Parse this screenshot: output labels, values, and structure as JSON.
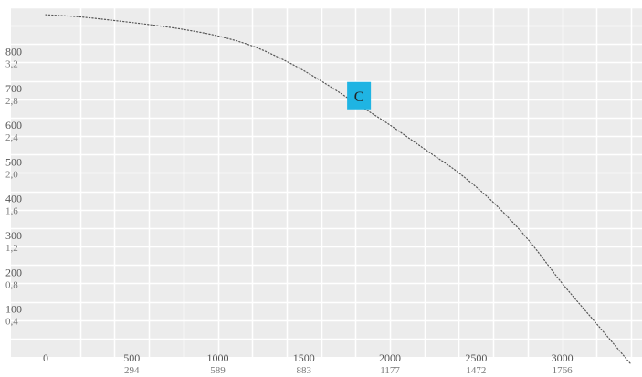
{
  "chart_data": {
    "type": "line",
    "title": "",
    "xlabel": "",
    "ylabel": "",
    "xlim": [
      0,
      3400
    ],
    "ylim": [
      0,
      950
    ],
    "grid": true,
    "x_ticks": [
      {
        "value": 0,
        "label": "0",
        "sub": ""
      },
      {
        "value": 500,
        "label": "500",
        "sub": "294"
      },
      {
        "value": 1000,
        "label": "1000",
        "sub": "589"
      },
      {
        "value": 1500,
        "label": "1500",
        "sub": "883"
      },
      {
        "value": 2000,
        "label": "2000",
        "sub": "1177"
      },
      {
        "value": 2500,
        "label": "2500",
        "sub": "1472"
      },
      {
        "value": 3000,
        "label": "3000",
        "sub": "1766"
      }
    ],
    "y_ticks": [
      {
        "value": 100,
        "label": "100",
        "sub": "0,4"
      },
      {
        "value": 200,
        "label": "200",
        "sub": "0,8"
      },
      {
        "value": 300,
        "label": "300",
        "sub": "1,2"
      },
      {
        "value": 400,
        "label": "400",
        "sub": "1,6"
      },
      {
        "value": 500,
        "label": "500",
        "sub": "2,0"
      },
      {
        "value": 600,
        "label": "600",
        "sub": "2,4"
      },
      {
        "value": 700,
        "label": "700",
        "sub": "2,8"
      },
      {
        "value": 800,
        "label": "800",
        "sub": "3,2"
      }
    ],
    "series": [
      {
        "label": "C",
        "color": "#555555",
        "style": "dotted",
        "x": [
          0,
          200,
          400,
          600,
          800,
          1000,
          1200,
          1400,
          1600,
          1800,
          2000,
          2200,
          2400,
          2600,
          2800,
          3000,
          3200,
          3400
        ],
        "y": [
          930,
          924,
          914,
          903,
          890,
          872,
          845,
          803,
          750,
          690,
          630,
          565,
          500,
          420,
          320,
          200,
          90,
          -20
        ]
      }
    ],
    "marker": {
      "label": "C",
      "x": 1820,
      "y": 710,
      "color": "#1fb4e3"
    }
  }
}
